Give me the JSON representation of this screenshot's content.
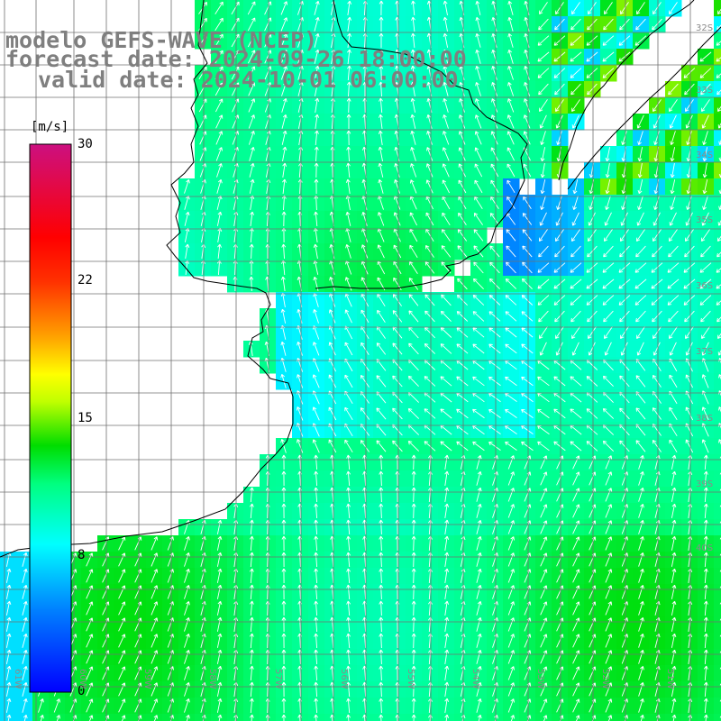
{
  "title": {
    "line1": "modelo GEFS-WAVE (NCEP)",
    "line2": "forecast date: 2024-09-26 18:00:00",
    "line3": "valid date: 2024-10-01 06:00:00"
  },
  "colorbar": {
    "unit": "[m/s]",
    "ticks": [
      "30",
      "22",
      "15",
      "8",
      "0"
    ],
    "min": 0,
    "max": 30
  },
  "colors": {
    "land": "#ffffff",
    "grid": "#707070",
    "coast": "#000000",
    "title_text": "#7f7f7f",
    "arrows": "#ffffff"
  },
  "field": {
    "variable": "wind speed",
    "units": "m/s",
    "representative_values": {
      "open_sea": 10,
      "coastal_calm": 4,
      "northeast_patch_max": 14
    }
  },
  "lat_labels": [
    "32S",
    "33S",
    "34S",
    "35S",
    "36S",
    "37S",
    "38S",
    "39S",
    "40S"
  ],
  "lon_labels": [
    "61W",
    "60W",
    "59W",
    "58W",
    "57W",
    "56W",
    "55W",
    "54W",
    "53W",
    "52W",
    "51W"
  ]
}
